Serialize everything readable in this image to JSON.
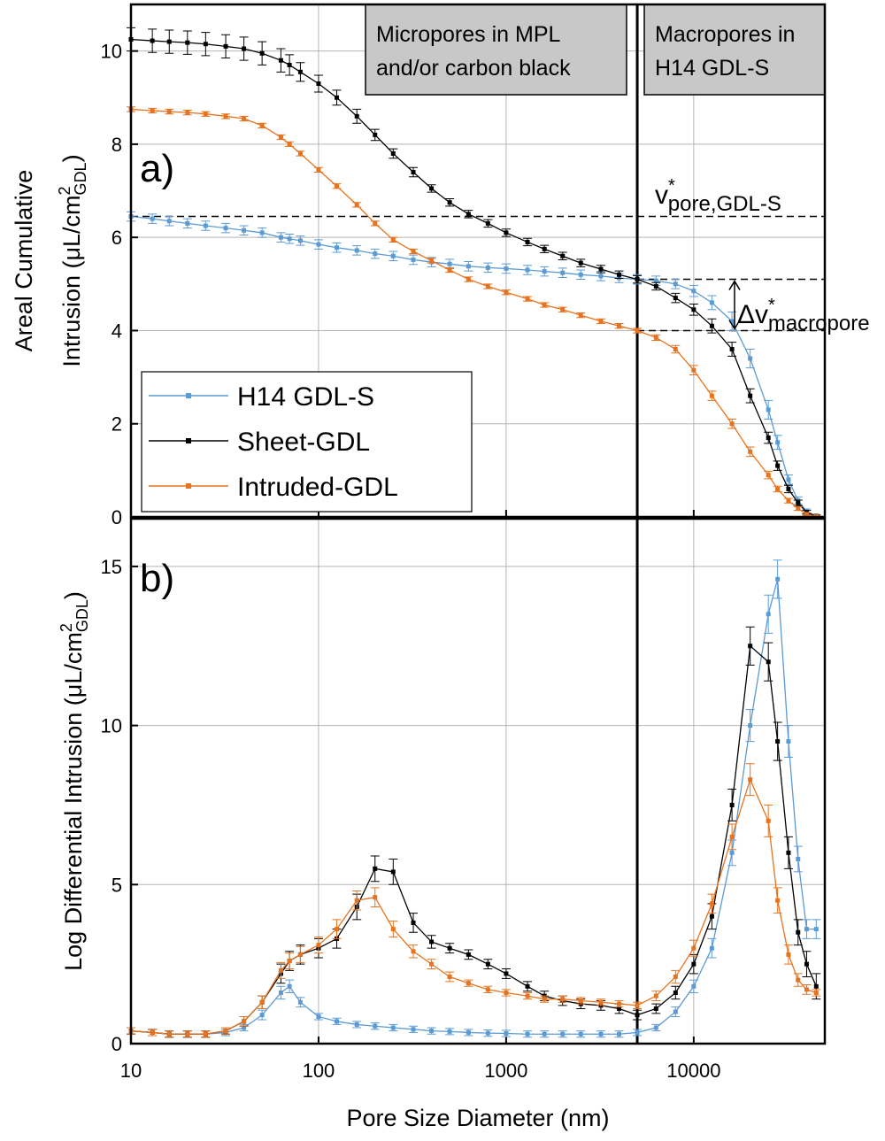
{
  "chart_data": [
    {
      "type": "line",
      "panel_label": "a)",
      "ylabel": {
        "line1": "Areal Cumulative",
        "line2": "Intrusion (μL/cm",
        "sup": "2",
        "sub": "GDL",
        "end": ")"
      },
      "xscale": "log",
      "xlim": [
        10,
        50000
      ],
      "xticks": [
        10,
        100,
        1000,
        10000
      ],
      "ylim": [
        0,
        11
      ],
      "yticks": [
        0,
        2,
        4,
        6,
        8,
        10
      ],
      "grid": true,
      "vline": 5000,
      "hlines": [
        {
          "y": 6.45,
          "x0": 10
        },
        {
          "y": 5.1,
          "x0": 5000
        },
        {
          "y": 4.0,
          "x0": 5000
        }
      ],
      "boxes": [
        {
          "lines": [
            "Micropores in MPL",
            "and/or carbon black"
          ]
        },
        {
          "lines": [
            "Macropores in",
            "H14 GDL-S"
          ]
        }
      ],
      "annotations": [
        {
          "main": "v",
          "sup": "*",
          "sub": "pore,GDL-S"
        },
        {
          "main": "Δv",
          "sup": "*",
          "sub": "macropore"
        }
      ],
      "legend": "lower left",
      "x": [
        10,
        13,
        16,
        20,
        25,
        32,
        40,
        50,
        63,
        70,
        80,
        100,
        125,
        160,
        200,
        250,
        320,
        400,
        500,
        630,
        800,
        1000,
        1300,
        1600,
        2000,
        2500,
        3200,
        4000,
        5000,
        6300,
        8000,
        10000,
        12500,
        16000,
        20000,
        25000,
        28000,
        32000,
        36000,
        40000,
        45000
      ],
      "series": [
        {
          "name": "H14 GDL-S",
          "color": "#5b9bd5",
          "values": [
            6.45,
            6.4,
            6.35,
            6.3,
            6.25,
            6.2,
            6.15,
            6.1,
            6.0,
            5.97,
            5.93,
            5.85,
            5.78,
            5.72,
            5.65,
            5.6,
            5.52,
            5.47,
            5.43,
            5.38,
            5.35,
            5.33,
            5.3,
            5.27,
            5.24,
            5.2,
            5.17,
            5.13,
            5.1,
            5.07,
            5.0,
            4.85,
            4.6,
            4.2,
            3.4,
            2.3,
            1.6,
            0.8,
            0.35,
            0.12,
            0.02
          ],
          "errors": [
            0.1,
            0.1,
            0.1,
            0.1,
            0.1,
            0.1,
            0.1,
            0.1,
            0.1,
            0.1,
            0.1,
            0.1,
            0.1,
            0.1,
            0.1,
            0.1,
            0.1,
            0.1,
            0.1,
            0.1,
            0.1,
            0.1,
            0.1,
            0.1,
            0.1,
            0.1,
            0.1,
            0.1,
            0.1,
            0.1,
            0.1,
            0.12,
            0.15,
            0.2,
            0.2,
            0.2,
            0.15,
            0.1,
            0.08,
            0.05,
            0.03
          ]
        },
        {
          "name": "Sheet-GDL",
          "color": "#000000",
          "values": [
            10.25,
            10.22,
            10.2,
            10.18,
            10.15,
            10.1,
            10.05,
            9.95,
            9.8,
            9.7,
            9.55,
            9.3,
            9.0,
            8.6,
            8.2,
            7.8,
            7.4,
            7.05,
            6.75,
            6.5,
            6.3,
            6.1,
            5.9,
            5.75,
            5.6,
            5.45,
            5.32,
            5.2,
            5.1,
            4.95,
            4.7,
            4.45,
            4.1,
            3.6,
            2.6,
            1.7,
            1.1,
            0.6,
            0.3,
            0.1,
            0.02
          ],
          "errors": [
            0.25,
            0.25,
            0.25,
            0.25,
            0.25,
            0.25,
            0.25,
            0.25,
            0.25,
            0.22,
            0.2,
            0.18,
            0.16,
            0.15,
            0.12,
            0.1,
            0.1,
            0.08,
            0.08,
            0.08,
            0.08,
            0.08,
            0.08,
            0.08,
            0.08,
            0.08,
            0.08,
            0.08,
            0.08,
            0.08,
            0.1,
            0.12,
            0.15,
            0.15,
            0.15,
            0.12,
            0.1,
            0.08,
            0.06,
            0.04,
            0.02
          ]
        },
        {
          "name": "Intruded-GDL",
          "color": "#e8731e",
          "values": [
            8.75,
            8.72,
            8.7,
            8.68,
            8.65,
            8.6,
            8.55,
            8.4,
            8.15,
            8.0,
            7.8,
            7.45,
            7.1,
            6.7,
            6.3,
            5.95,
            5.7,
            5.5,
            5.3,
            5.1,
            4.95,
            4.82,
            4.68,
            4.55,
            4.45,
            4.33,
            4.2,
            4.1,
            4.0,
            3.85,
            3.6,
            3.15,
            2.6,
            2.0,
            1.4,
            0.9,
            0.6,
            0.35,
            0.18,
            0.06,
            0.01
          ],
          "errors": [
            0.05,
            0.05,
            0.05,
            0.05,
            0.05,
            0.05,
            0.05,
            0.05,
            0.05,
            0.05,
            0.05,
            0.05,
            0.05,
            0.05,
            0.05,
            0.05,
            0.05,
            0.05,
            0.05,
            0.05,
            0.05,
            0.05,
            0.05,
            0.05,
            0.05,
            0.05,
            0.05,
            0.05,
            0.05,
            0.06,
            0.08,
            0.1,
            0.1,
            0.1,
            0.1,
            0.08,
            0.06,
            0.05,
            0.04,
            0.03,
            0.02
          ]
        }
      ]
    },
    {
      "type": "line",
      "panel_label": "b)",
      "ylabel": {
        "line2": "Log Differential Intrusion (μL/cm",
        "sup": "2",
        "sub": "GDL",
        "end": ")"
      },
      "xlabel": "Pore Size Diameter (nm)",
      "xscale": "log",
      "xlim": [
        10,
        50000
      ],
      "xticks": [
        10,
        100,
        1000,
        10000
      ],
      "ylim": [
        0,
        16.5
      ],
      "yticks": [
        0,
        5,
        10,
        15
      ],
      "grid": true,
      "vline": 5000,
      "x": [
        10,
        13,
        16,
        20,
        25,
        32,
        40,
        50,
        63,
        70,
        80,
        100,
        125,
        160,
        200,
        250,
        320,
        400,
        500,
        630,
        800,
        1000,
        1300,
        1600,
        2000,
        2500,
        3200,
        4000,
        5000,
        6300,
        8000,
        10000,
        12500,
        16000,
        20000,
        25000,
        28000,
        32000,
        36000,
        40000,
        45000
      ],
      "series": [
        {
          "color": "#5b9bd5",
          "values": [
            0.4,
            0.35,
            0.3,
            0.3,
            0.3,
            0.35,
            0.5,
            0.9,
            1.6,
            1.8,
            1.3,
            0.85,
            0.7,
            0.6,
            0.55,
            0.5,
            0.45,
            0.4,
            0.38,
            0.35,
            0.33,
            0.32,
            0.3,
            0.3,
            0.3,
            0.3,
            0.3,
            0.3,
            0.35,
            0.5,
            1.0,
            1.8,
            3.0,
            6.0,
            10.0,
            13.5,
            14.6,
            9.5,
            5.8,
            3.6,
            3.6
          ],
          "errors": [
            0.1,
            0.1,
            0.1,
            0.1,
            0.1,
            0.1,
            0.1,
            0.15,
            0.2,
            0.2,
            0.15,
            0.1,
            0.1,
            0.1,
            0.1,
            0.1,
            0.1,
            0.1,
            0.1,
            0.1,
            0.1,
            0.1,
            0.1,
            0.1,
            0.1,
            0.1,
            0.1,
            0.1,
            0.1,
            0.1,
            0.15,
            0.2,
            0.3,
            0.4,
            0.5,
            0.6,
            0.6,
            0.5,
            0.4,
            0.3,
            0.3
          ]
        },
        {
          "color": "#000000",
          "values": [
            0.4,
            0.35,
            0.3,
            0.3,
            0.3,
            0.4,
            0.7,
            1.3,
            2.2,
            2.6,
            2.8,
            3.0,
            3.3,
            4.3,
            5.5,
            5.4,
            3.8,
            3.2,
            3.0,
            2.8,
            2.5,
            2.2,
            1.8,
            1.5,
            1.35,
            1.25,
            1.2,
            1.1,
            0.9,
            1.1,
            1.6,
            2.5,
            4.0,
            7.5,
            12.5,
            12.0,
            9.5,
            6.0,
            3.5,
            2.5,
            1.8
          ],
          "errors": [
            0.1,
            0.1,
            0.1,
            0.1,
            0.1,
            0.1,
            0.15,
            0.2,
            0.3,
            0.3,
            0.3,
            0.3,
            0.3,
            0.4,
            0.4,
            0.4,
            0.3,
            0.2,
            0.15,
            0.15,
            0.15,
            0.15,
            0.15,
            0.15,
            0.15,
            0.15,
            0.15,
            0.15,
            0.15,
            0.15,
            0.2,
            0.3,
            0.4,
            0.5,
            0.6,
            0.6,
            0.6,
            0.5,
            0.4,
            0.4,
            0.4
          ]
        },
        {
          "color": "#e8731e",
          "values": [
            0.4,
            0.35,
            0.3,
            0.3,
            0.3,
            0.4,
            0.7,
            1.3,
            2.3,
            2.6,
            2.8,
            3.1,
            3.6,
            4.5,
            4.6,
            3.6,
            2.9,
            2.5,
            2.1,
            1.9,
            1.7,
            1.6,
            1.5,
            1.4,
            1.4,
            1.35,
            1.3,
            1.25,
            1.2,
            1.5,
            2.1,
            3.0,
            4.4,
            6.5,
            8.3,
            7.0,
            4.5,
            2.8,
            2.0,
            1.7,
            1.6
          ],
          "errors": [
            0.1,
            0.1,
            0.1,
            0.1,
            0.1,
            0.1,
            0.15,
            0.2,
            0.25,
            0.25,
            0.25,
            0.25,
            0.3,
            0.3,
            0.3,
            0.25,
            0.2,
            0.15,
            0.15,
            0.1,
            0.1,
            0.1,
            0.1,
            0.1,
            0.1,
            0.1,
            0.1,
            0.1,
            0.1,
            0.15,
            0.2,
            0.25,
            0.3,
            0.4,
            0.5,
            0.5,
            0.4,
            0.3,
            0.2,
            0.15,
            0.1
          ]
        }
      ]
    }
  ]
}
